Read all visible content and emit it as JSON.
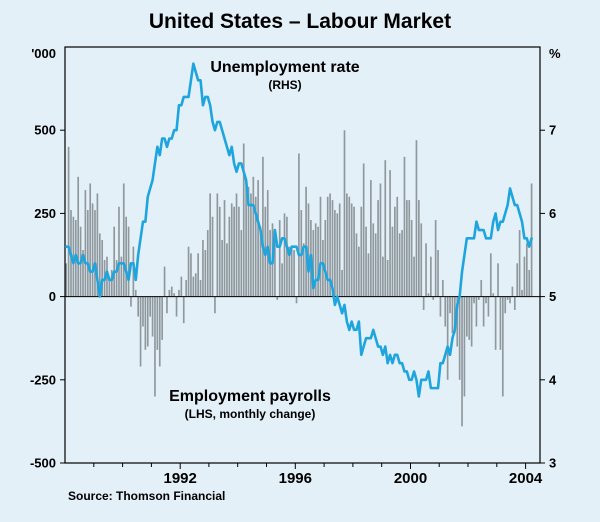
{
  "title": "United States – Labour Market",
  "source": "Source: Thomson Financial",
  "annotations": {
    "line": {
      "label": "Unemployment rate",
      "note": "(RHS)"
    },
    "bars": {
      "label": "Employment payrolls",
      "note": "(LHS, monthly change)"
    }
  },
  "colors": {
    "background": "#e4f0f8",
    "bars": "#8f989d",
    "line": "#1ea5dd",
    "axis": "#000000"
  },
  "chart_data": {
    "type": "combo",
    "title": "United States – Labour Market",
    "subtitle": "",
    "x_start_year": 1988,
    "x_start_month": 1,
    "frequency": "monthly",
    "x_axis": {
      "range": [
        1988.0,
        2004.5
      ],
      "tick_years": [
        1992,
        1996,
        2000,
        2004
      ]
    },
    "left_axis": {
      "unit": "'000",
      "min": -500,
      "max": 750,
      "ticks": [
        500,
        250,
        0,
        -250,
        -500
      ],
      "label": "Employment payrolls, monthly change (thousands)"
    },
    "right_axis": {
      "unit": "%",
      "min": 3,
      "max": 8,
      "ticks": [
        7,
        6,
        5,
        4,
        3
      ],
      "label": "Unemployment rate (per cent)"
    },
    "grid": false,
    "legend_position": "in-plot annotations",
    "series": [
      {
        "name": "Employment payrolls",
        "type": "bar",
        "axis": "left",
        "color": "#8f989d",
        "values": [
          100,
          450,
          260,
          240,
          230,
          360,
          210,
          140,
          320,
          260,
          340,
          280,
          260,
          310,
          190,
          170,
          110,
          120,
          60,
          80,
          210,
          110,
          270,
          120,
          340,
          240,
          210,
          -30,
          150,
          20,
          -60,
          -210,
          -90,
          -160,
          -150,
          -60,
          -120,
          -300,
          -160,
          -210,
          -130,
          90,
          -50,
          20,
          30,
          10,
          -60,
          20,
          60,
          -80,
          50,
          150,
          130,
          60,
          70,
          130,
          50,
          170,
          140,
          200,
          310,
          240,
          -50,
          310,
          270,
          170,
          290,
          160,
          240,
          280,
          270,
          310,
          270,
          200,
          460,
          350,
          330,
          310,
          360,
          300,
          350,
          210,
          420,
          270,
          320,
          200,
          220,
          160,
          -10,
          230,
          100,
          250,
          240,
          150,
          150,
          140,
          -20,
          430,
          260,
          160,
          330,
          280,
          230,
          200,
          220,
          210,
          300,
          170,
          230,
          300,
          310,
          290,
          260,
          250,
          280,
          80,
          500,
          310,
          300,
          280,
          270,
          190,
          150,
          270,
          400,
          210,
          130,
          350,
          220,
          190,
          290,
          340,
          120,
          410,
          110,
          380,
          210,
          270,
          300,
          190,
          200,
          420,
          290,
          290,
          230,
          120,
          470,
          290,
          220,
          -40,
          160,
          10,
          120,
          -10,
          230,
          140,
          -60,
          50,
          -90,
          -250,
          -50,
          -110,
          -110,
          -150,
          -250,
          -390,
          -300,
          -120,
          -130,
          -150,
          -20,
          -90,
          -10,
          50,
          -90,
          -20,
          -60,
          130,
          10,
          -160,
          100,
          -160,
          -300,
          -50,
          -10,
          -20,
          30,
          -40,
          100,
          200,
          20,
          120,
          160,
          80,
          340
        ]
      },
      {
        "name": "Unemployment rate",
        "type": "line",
        "axis": "right",
        "color": "#1ea5dd",
        "values": [
          5.6,
          5.6,
          5.5,
          5.4,
          5.5,
          5.4,
          5.4,
          5.5,
          5.4,
          5.4,
          5.3,
          5.3,
          5.4,
          5.2,
          5.0,
          5.2,
          5.2,
          5.3,
          5.2,
          5.2,
          5.3,
          5.3,
          5.4,
          5.4,
          5.4,
          5.3,
          5.2,
          5.4,
          5.4,
          5.2,
          5.5,
          5.7,
          5.9,
          5.9,
          6.2,
          6.3,
          6.4,
          6.6,
          6.8,
          6.7,
          6.9,
          6.9,
          6.8,
          6.9,
          6.9,
          7.0,
          7.0,
          7.3,
          7.3,
          7.4,
          7.4,
          7.4,
          7.6,
          7.8,
          7.7,
          7.6,
          7.6,
          7.3,
          7.4,
          7.4,
          7.3,
          7.1,
          7.0,
          7.1,
          7.1,
          7.0,
          6.9,
          6.8,
          6.7,
          6.8,
          6.6,
          6.5,
          6.6,
          6.6,
          6.5,
          6.4,
          6.1,
          6.1,
          6.1,
          6.0,
          5.9,
          5.8,
          5.6,
          5.5,
          5.6,
          5.4,
          5.4,
          5.8,
          5.6,
          5.6,
          5.7,
          5.7,
          5.6,
          5.5,
          5.6,
          5.6,
          5.6,
          5.5,
          5.5,
          5.6,
          5.6,
          5.3,
          5.5,
          5.1,
          5.2,
          5.2,
          5.4,
          5.4,
          5.3,
          5.2,
          5.2,
          5.1,
          4.9,
          5.0,
          4.9,
          4.8,
          4.9,
          4.7,
          4.6,
          4.7,
          4.6,
          4.6,
          4.7,
          4.3,
          4.4,
          4.5,
          4.5,
          4.5,
          4.6,
          4.5,
          4.4,
          4.4,
          4.3,
          4.4,
          4.2,
          4.3,
          4.2,
          4.3,
          4.3,
          4.2,
          4.2,
          4.1,
          4.1,
          4.0,
          4.0,
          4.1,
          4.0,
          3.8,
          4.0,
          4.0,
          4.0,
          4.1,
          3.9,
          3.9,
          3.9,
          3.9,
          4.2,
          4.2,
          4.3,
          4.4,
          4.3,
          4.5,
          4.6,
          4.9,
          5.0,
          5.3,
          5.5,
          5.7,
          5.7,
          5.7,
          5.7,
          5.9,
          5.8,
          5.8,
          5.8,
          5.7,
          5.7,
          5.7,
          5.9,
          6.0,
          5.8,
          5.9,
          5.9,
          6.0,
          6.1,
          6.3,
          6.2,
          6.1,
          6.1,
          6.0,
          5.9,
          5.7,
          5.7,
          5.6,
          5.7
        ]
      }
    ]
  }
}
